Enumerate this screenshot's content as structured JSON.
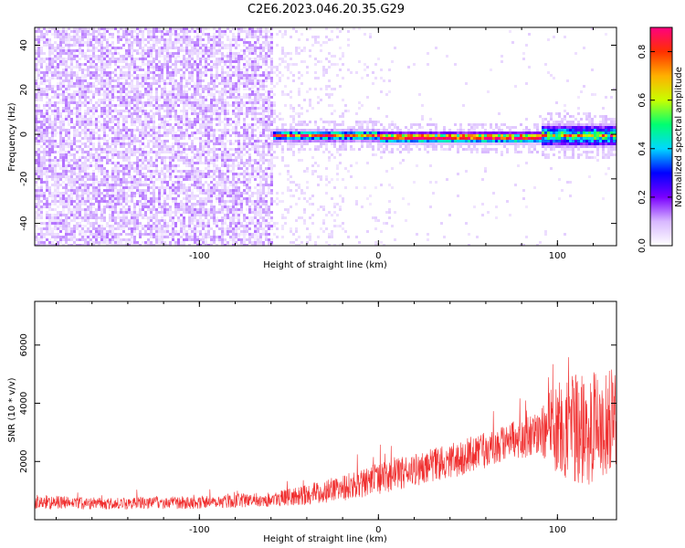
{
  "figure_title": "C2E6.2023.046.20.35.G29",
  "chart_data": [
    {
      "type": "heatmap",
      "title": "C2E6.2023.046.20.35.G29",
      "xlabel": "Height of straight line (km)",
      "ylabel": "Frequency (Hz)",
      "xlim": [
        -192,
        133
      ],
      "ylim": [
        -50,
        48
      ],
      "x_ticks": [
        -100,
        0,
        100
      ],
      "y_ticks": [
        -40,
        -20,
        0,
        20,
        40
      ],
      "colorbar": {
        "label": "Normalized spectral amplitude",
        "range": [
          0.0,
          0.9
        ],
        "ticks": [
          0.0,
          0.2,
          0.4,
          0.6,
          0.8
        ],
        "colormap": [
          "#ffffff",
          "#d8b8ff",
          "#7a00ff",
          "#0000ff",
          "#00d8ff",
          "#00ff70",
          "#c8ff00",
          "#ffb000",
          "#ff3000",
          "#ff0080"
        ]
      },
      "regions": [
        {
          "x_range": [
            -192,
            -60
          ],
          "description": "broadband noise",
          "level": 0.1
        },
        {
          "x_range": [
            -60,
            0
          ],
          "signal_freq": 0,
          "level": 0.5
        },
        {
          "x_range": [
            0,
            90
          ],
          "signal_freq": -1,
          "level": 0.6
        },
        {
          "x_range": [
            90,
            133
          ],
          "signal_freq": 0,
          "level": 0.4
        }
      ]
    },
    {
      "type": "line",
      "xlabel": "Height of straight line (km)",
      "ylabel": "SNR (10 * v/v)",
      "xlim": [
        -192,
        133
      ],
      "ylim": [
        0,
        7500
      ],
      "x_ticks": [
        -100,
        0,
        100
      ],
      "y_ticks": [
        2000,
        4000,
        6000
      ],
      "color": "#f03030",
      "series": [
        {
          "x": [
            -190,
            -150,
            -100,
            -60,
            -40,
            -20,
            0,
            40,
            70,
            90,
            100,
            115,
            133
          ],
          "y": [
            600,
            550,
            600,
            700,
            850,
            1100,
            1400,
            2000,
            2600,
            3000,
            3200,
            3000,
            3500
          ],
          "spread": [
            500,
            400,
            450,
            500,
            700,
            900,
            1100,
            1200,
            1300,
            1500,
            3500,
            4000,
            3500
          ]
        }
      ]
    }
  ]
}
